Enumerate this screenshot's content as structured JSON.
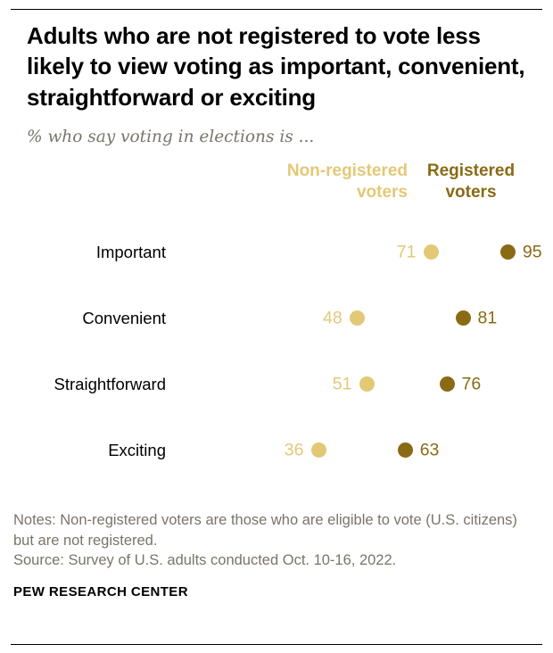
{
  "header": {
    "title": "Adults who are not registered to vote less likely to view voting as important, convenient, straightforward or exciting",
    "subtitle": "% who say voting in elections is ..."
  },
  "chart_data": {
    "type": "scatter",
    "categories": [
      "Important",
      "Convenient",
      "Straightforward",
      "Exciting"
    ],
    "series": [
      {
        "name": "Non-registered voters",
        "color": "#e3c876",
        "values": [
          71,
          48,
          51,
          36
        ]
      },
      {
        "name": "Registered voters",
        "color": "#8a6a15",
        "values": [
          95,
          81,
          76,
          63
        ]
      }
    ],
    "xlim": [
      30,
      100
    ],
    "legend_position": "top",
    "grid": false
  },
  "footer": {
    "notes": "Notes: Non-registered voters are those who are eligible to vote (U.S. citizens) but are not registered.",
    "source": "Source: Survey of U.S. adults conducted Oct. 10-16, 2022.",
    "brand": "PEW RESEARCH CENTER"
  }
}
